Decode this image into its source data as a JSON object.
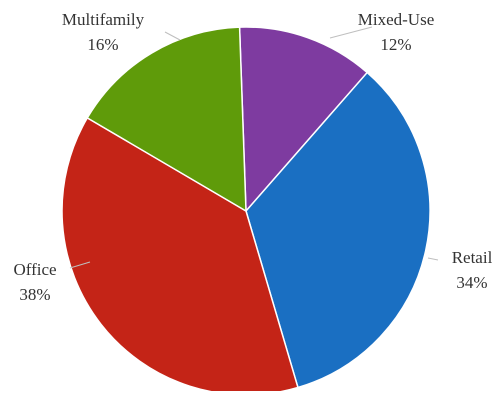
{
  "chart_data": {
    "type": "pie",
    "title": "",
    "legend": "none",
    "labels": [
      "Mixed-Use",
      "Retail",
      "Office",
      "Multifamily"
    ],
    "values": [
      12,
      34,
      38,
      16
    ],
    "value_labels": [
      "12%",
      "34%",
      "38%",
      "16%"
    ],
    "colors": [
      "#7E3BA0",
      "#1A6FC2",
      "#C42417",
      "#5F9B0A"
    ],
    "start_direction": "top",
    "direction": "clockwise"
  }
}
